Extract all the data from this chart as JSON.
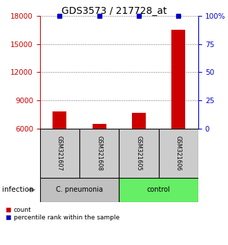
{
  "title": "GDS3573 / 217728_at",
  "samples": [
    "GSM321607",
    "GSM321608",
    "GSM321605",
    "GSM321606"
  ],
  "counts": [
    7800,
    6500,
    7700,
    16500
  ],
  "percentiles": [
    100,
    100,
    100,
    100
  ],
  "ylim_left": [
    6000,
    18000
  ],
  "ylim_right": [
    0,
    100
  ],
  "yticks_left": [
    6000,
    9000,
    12000,
    15000,
    18000
  ],
  "yticks_right": [
    0,
    25,
    50,
    75,
    100
  ],
  "bar_color": "#cc0000",
  "percentile_color": "#0000cc",
  "left_axis_color": "#cc0000",
  "right_axis_color": "#0000cc",
  "groups": [
    {
      "label": "C. pneumonia",
      "color": "#c0c0c0",
      "indices": [
        0,
        1
      ]
    },
    {
      "label": "control",
      "color": "#66ee66",
      "indices": [
        2,
        3
      ]
    }
  ],
  "group_label": "infection",
  "bar_width": 0.35,
  "box_bg_color": "#cccccc",
  "box_border_color": "#000000",
  "dotted_line_color": "#666666",
  "title_fontsize": 10,
  "tick_fontsize": 7.5
}
